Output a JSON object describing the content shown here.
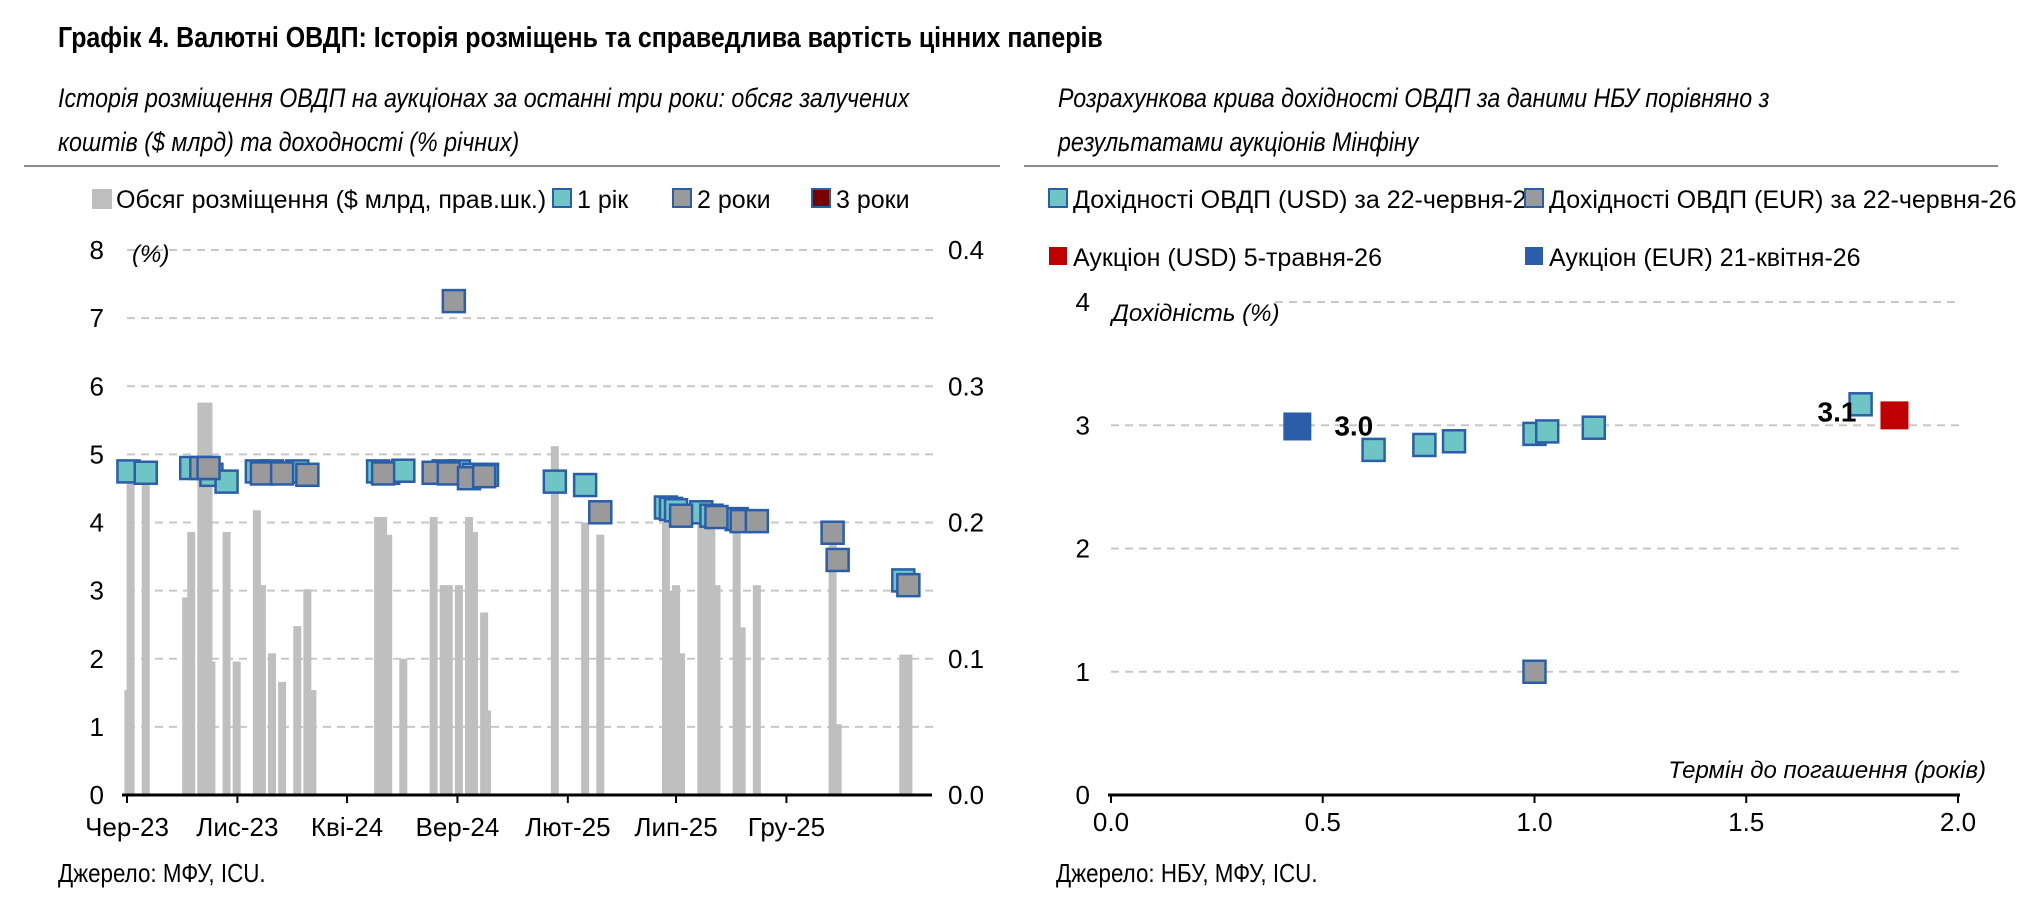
{
  "title": "Графік 4. Валютні ОВДП: Історія розміщень та справедлива вартість цінних паперів",
  "left_panel": {
    "subtitle_line1": "Історія розміщення ОВДП на аукціонах за останні три роки: обсяг залучених",
    "subtitle_line2": "коштів ($ млрд) та доходності (% річних)",
    "source": "Джерело: МФУ, ICU."
  },
  "right_panel": {
    "subtitle_line1": "Розрахункова крива дохідності ОВДП за даними НБУ порівняно з",
    "subtitle_line2": "результатами аукціонів Мінфіну",
    "source": "Джерело: НБУ, МФУ, ICU."
  },
  "chart_data": [
    {
      "type": "bar+scatter",
      "x_axis_type": "date",
      "x_range": [
        "2023-06-01",
        "2026-06-18"
      ],
      "x_tick_labels": [
        {
          "date": "2023-06-01",
          "label": "Чер-23"
        },
        {
          "date": "2023-11-01",
          "label": "Лис-23"
        },
        {
          "date": "2024-04-01",
          "label": "Кві-24"
        },
        {
          "date": "2024-09-01",
          "label": "Вер-24"
        },
        {
          "date": "2025-02-01",
          "label": "Лют-25"
        },
        {
          "date": "2025-07-01",
          "label": "Лип-25"
        },
        {
          "date": "2025-12-01",
          "label": "Гру-25"
        }
      ],
      "y_left": {
        "min": 0,
        "max": 8,
        "ticks": [
          "0",
          "1",
          "2",
          "3",
          "4",
          "5",
          "6",
          "7",
          "8"
        ],
        "label": "(%)"
      },
      "y_right": {
        "min": 0,
        "max": 0.4,
        "ticks": [
          "0.0",
          "0.1",
          "0.2",
          "0.3",
          "0.4"
        ]
      },
      "grid": true,
      "legend": [
        {
          "label": "Обсяг розміщення ($ млрд, прав.шк.)",
          "color": "#bfbfbf",
          "kind": "bar"
        },
        {
          "label": "1 рік",
          "color": "#6fc5c5",
          "kind": "marker"
        },
        {
          "label": "2 роки",
          "color": "#9a9a9a",
          "kind": "marker"
        },
        {
          "label": "3 роки",
          "color": "#7a0000",
          "kind": "marker"
        }
      ],
      "colors": {
        "bar": "#bfbfbf",
        "one_year": "#6fc5c5",
        "two_years": "#9a9a9a",
        "three_years": "#7a0000",
        "marker_edge": "#2a5ea8"
      },
      "bars": [
        {
          "date": "2023-06-03",
          "value": 0.077
        },
        {
          "date": "2023-06-06",
          "value": 0.235
        },
        {
          "date": "2023-06-27",
          "value": 0.235
        },
        {
          "date": "2023-08-22",
          "value": 0.145
        },
        {
          "date": "2023-08-29",
          "value": 0.193
        },
        {
          "date": "2023-09-12",
          "value": 0.288
        },
        {
          "date": "2023-09-22",
          "value": 0.288
        },
        {
          "date": "2023-09-26",
          "value": 0.098
        },
        {
          "date": "2023-10-17",
          "value": 0.193
        },
        {
          "date": "2023-10-31",
          "value": 0.098
        },
        {
          "date": "2023-11-28",
          "value": 0.209
        },
        {
          "date": "2023-12-05",
          "value": 0.154
        },
        {
          "date": "2023-12-19",
          "value": 0.104
        },
        {
          "date": "2024-01-02",
          "value": 0.083
        },
        {
          "date": "2024-01-23",
          "value": 0.124
        },
        {
          "date": "2024-02-06",
          "value": 0.151
        },
        {
          "date": "2024-02-13",
          "value": 0.077
        },
        {
          "date": "2024-05-14",
          "value": 0.204
        },
        {
          "date": "2024-05-21",
          "value": 0.204
        },
        {
          "date": "2024-05-28",
          "value": 0.191
        },
        {
          "date": "2024-06-18",
          "value": 0.1
        },
        {
          "date": "2024-07-30",
          "value": 0.204
        },
        {
          "date": "2024-08-13",
          "value": 0.154
        },
        {
          "date": "2024-08-20",
          "value": 0.154
        },
        {
          "date": "2024-09-03",
          "value": 0.154
        },
        {
          "date": "2024-09-17",
          "value": 0.204
        },
        {
          "date": "2024-09-24",
          "value": 0.193
        },
        {
          "date": "2024-10-08",
          "value": 0.134
        },
        {
          "date": "2024-10-12",
          "value": 0.062
        },
        {
          "date": "2025-01-14",
          "value": 0.256
        },
        {
          "date": "2025-02-25",
          "value": 0.2
        },
        {
          "date": "2025-03-18",
          "value": 0.191
        },
        {
          "date": "2025-06-17",
          "value": 0.205
        },
        {
          "date": "2025-06-24",
          "value": 0.15
        },
        {
          "date": "2025-07-01",
          "value": 0.154
        },
        {
          "date": "2025-07-08",
          "value": 0.104
        },
        {
          "date": "2025-08-05",
          "value": 0.2
        },
        {
          "date": "2025-08-12",
          "value": 0.2
        },
        {
          "date": "2025-08-19",
          "value": 0.2
        },
        {
          "date": "2025-08-26",
          "value": 0.154
        },
        {
          "date": "2025-09-23",
          "value": 0.2
        },
        {
          "date": "2025-09-30",
          "value": 0.123
        },
        {
          "date": "2025-10-21",
          "value": 0.154
        },
        {
          "date": "2026-02-03",
          "value": 0.2
        },
        {
          "date": "2026-02-10",
          "value": 0.052
        },
        {
          "date": "2026-05-12",
          "value": 0.103
        },
        {
          "date": "2026-05-19",
          "value": 0.103
        }
      ],
      "series": [
        {
          "name": "1 рік",
          "points": [
            {
              "date": "2023-06-03",
              "y": 4.75
            },
            {
              "date": "2023-06-27",
              "y": 4.73
            },
            {
              "date": "2023-08-29",
              "y": 4.8
            },
            {
              "date": "2023-09-26",
              "y": 4.7
            },
            {
              "date": "2023-10-17",
              "y": 4.6
            },
            {
              "date": "2023-11-28",
              "y": 4.75
            },
            {
              "date": "2023-12-19",
              "y": 4.75
            },
            {
              "date": "2024-01-23",
              "y": 4.75
            },
            {
              "date": "2024-05-14",
              "y": 4.75
            },
            {
              "date": "2024-05-28",
              "y": 4.73
            },
            {
              "date": "2024-06-18",
              "y": 4.76
            },
            {
              "date": "2024-08-13",
              "y": 4.75
            },
            {
              "date": "2024-09-03",
              "y": 4.75
            },
            {
              "date": "2024-09-24",
              "y": 4.7
            },
            {
              "date": "2024-10-12",
              "y": 4.7
            },
            {
              "date": "2025-01-14",
              "y": 4.6
            },
            {
              "date": "2025-02-25",
              "y": 4.55
            },
            {
              "date": "2025-06-17",
              "y": 4.22
            },
            {
              "date": "2025-06-24",
              "y": 4.2
            },
            {
              "date": "2025-07-01",
              "y": 4.18
            },
            {
              "date": "2025-08-05",
              "y": 4.15
            },
            {
              "date": "2025-08-19",
              "y": 4.1
            },
            {
              "date": "2025-09-23",
              "y": 4.05
            },
            {
              "date": "2026-05-12",
              "y": 3.15
            }
          ]
        },
        {
          "name": "2 роки",
          "points": [
            {
              "date": "2023-09-12",
              "y": 4.8
            },
            {
              "date": "2023-09-22",
              "y": 4.8
            },
            {
              "date": "2023-12-05",
              "y": 4.72
            },
            {
              "date": "2024-01-02",
              "y": 4.72
            },
            {
              "date": "2024-02-06",
              "y": 4.7
            },
            {
              "date": "2024-05-21",
              "y": 4.72
            },
            {
              "date": "2024-07-30",
              "y": 4.73
            },
            {
              "date": "2024-08-20",
              "y": 4.72
            },
            {
              "date": "2024-09-17",
              "y": 4.65
            },
            {
              "date": "2024-10-08",
              "y": 4.68
            },
            {
              "date": "2024-08-27",
              "y": 7.25
            },
            {
              "date": "2025-03-18",
              "y": 4.15
            },
            {
              "date": "2025-07-08",
              "y": 4.1
            },
            {
              "date": "2025-08-26",
              "y": 4.08
            },
            {
              "date": "2025-09-30",
              "y": 4.02
            },
            {
              "date": "2025-10-21",
              "y": 4.02
            },
            {
              "date": "2026-02-03",
              "y": 3.85
            },
            {
              "date": "2026-02-10",
              "y": 3.45
            },
            {
              "date": "2026-05-19",
              "y": 3.08
            }
          ]
        },
        {
          "name": "3 роки",
          "points": []
        }
      ]
    },
    {
      "type": "scatter",
      "x": {
        "min": 0,
        "max": 2,
        "ticks": [
          "0.0",
          "0.5",
          "1.0",
          "1.5",
          "2.0"
        ],
        "label": "Термін до погашення (років)"
      },
      "y": {
        "min": 0,
        "max": 4,
        "ticks": [
          "0",
          "1",
          "2",
          "3",
          "4"
        ],
        "label": "Дохідність (%)"
      },
      "grid": true,
      "legend": [
        {
          "label": "Дохідності ОВДП (USD) за 22-червня-26",
          "color": "#6fc5c5"
        },
        {
          "label": "Дохідності ОВДП (EUR) за 22-червня-26",
          "color": "#9a9a9a"
        },
        {
          "label": "Аукціон (USD) 5-травня-26",
          "color": "#c00000"
        },
        {
          "label": "Аукціон (EUR) 21-квітня-26",
          "color": "#2a5ea8"
        }
      ],
      "colors": {
        "usd": "#6fc5c5",
        "eur": "#9a9a9a",
        "auction_usd": "#c00000",
        "auction_eur": "#2a5ea8",
        "marker_edge": "#2a5ea8"
      },
      "series": [
        {
          "name": "Дохідності ОВДП (USD) за 22-червня-26",
          "points": [
            {
              "x": 0.62,
              "y": 2.8
            },
            {
              "x": 0.74,
              "y": 2.84
            },
            {
              "x": 0.81,
              "y": 2.87
            },
            {
              "x": 1.0,
              "y": 2.93
            },
            {
              "x": 1.03,
              "y": 2.95
            },
            {
              "x": 1.14,
              "y": 2.98
            },
            {
              "x": 1.77,
              "y": 3.17
            }
          ]
        },
        {
          "name": "Дохідності ОВДП (EUR) за 22-червня-26",
          "points": [
            {
              "x": 1.0,
              "y": 1.0
            }
          ]
        },
        {
          "name": "Аукціон (USD) 5-травня-26",
          "points": [
            {
              "x": 1.85,
              "y": 3.08,
              "label": "3.1"
            }
          ]
        },
        {
          "name": "Аукціон (EUR) 21-квітня-26",
          "points": [
            {
              "x": 0.44,
              "y": 2.99,
              "label": "3.0"
            }
          ]
        }
      ]
    }
  ]
}
